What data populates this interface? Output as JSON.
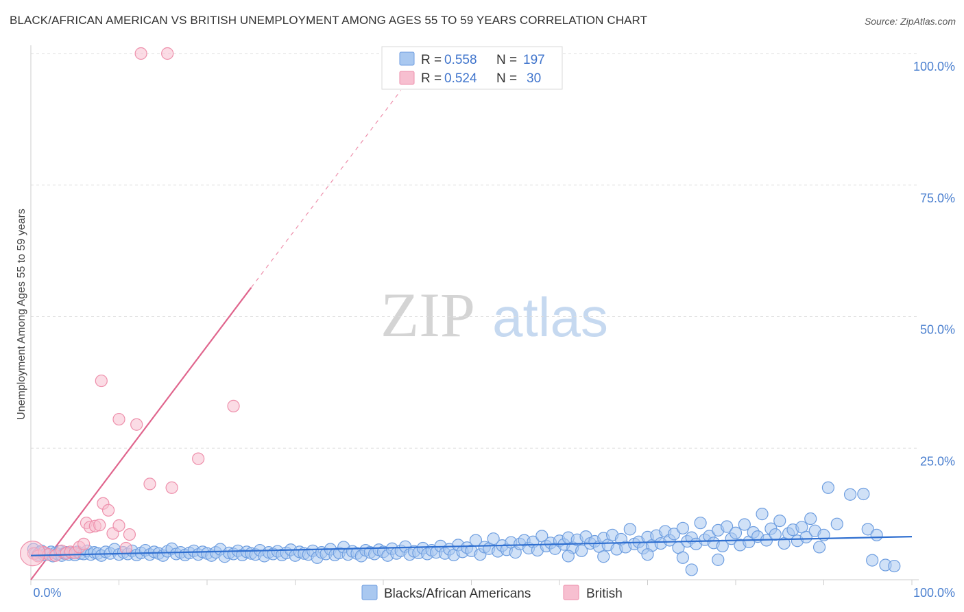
{
  "title": "BLACK/AFRICAN AMERICAN VS BRITISH UNEMPLOYMENT AMONG AGES 55 TO 59 YEARS CORRELATION CHART",
  "source": "Source: ZipAtlas.com",
  "watermark": {
    "zip": "ZIP",
    "atlas": "atlas"
  },
  "colors": {
    "blue_fill": "#a9c8f0",
    "blue_stroke": "#6e9ee0",
    "blue_line": "#2f6fd0",
    "pink_fill": "#f7bfd0",
    "pink_stroke": "#ee8fab",
    "pink_line": "#e0658d",
    "axis_text": "#4a7fcf",
    "grid": "#dddddd"
  },
  "legend": {
    "rows": [
      {
        "r_label": "R =",
        "r_value": "0.558",
        "n_label": "N =",
        "n_value": "197"
      },
      {
        "r_label": "R =",
        "r_value": "0.524",
        "n_label": "N =",
        "n_value": "30"
      }
    ]
  },
  "chart_data": {
    "type": "scatter",
    "xlabel": "",
    "ylabel": "Unemployment Among Ages 55 to 59 years",
    "xlim": [
      0,
      100
    ],
    "ylim": [
      0,
      100
    ],
    "x_tick_labels": [
      "0.0%",
      "100.0%"
    ],
    "y_ticks": [
      25,
      50,
      75,
      100
    ],
    "y_tick_labels": [
      "25.0%",
      "50.0%",
      "75.0%",
      "100.0%"
    ],
    "grid": true,
    "series": [
      {
        "name": "Blacks/African Americans",
        "r": 0.558,
        "n": 197,
        "trend": {
          "x0": 0,
          "y0": 4.6,
          "x1": 100,
          "y1": 8.2
        },
        "points": [
          [
            0.3,
            5.8
          ],
          [
            0.5,
            5.0
          ],
          [
            0.8,
            4.8
          ],
          [
            1.0,
            5.2
          ],
          [
            1.2,
            5.5
          ],
          [
            1.5,
            4.7
          ],
          [
            1.8,
            5.0
          ],
          [
            2.0,
            4.8
          ],
          [
            2.3,
            5.3
          ],
          [
            2.5,
            4.5
          ],
          [
            2.8,
            5.1
          ],
          [
            3.0,
            4.9
          ],
          [
            3.3,
            5.4
          ],
          [
            3.5,
            4.6
          ],
          [
            3.8,
            5.0
          ],
          [
            4.0,
            5.2
          ],
          [
            4.3,
            4.8
          ],
          [
            4.6,
            5.1
          ],
          [
            5.0,
            4.7
          ],
          [
            5.3,
            5.3
          ],
          [
            5.6,
            5.0
          ],
          [
            6.0,
            4.9
          ],
          [
            6.4,
            5.5
          ],
          [
            6.8,
            4.8
          ],
          [
            7.2,
            5.2
          ],
          [
            7.6,
            5.0
          ],
          [
            8.0,
            4.6
          ],
          [
            8.5,
            5.3
          ],
          [
            9.0,
            5.0
          ],
          [
            9.5,
            5.8
          ],
          [
            10.0,
            4.8
          ],
          [
            10.5,
            5.2
          ],
          [
            11.0,
            4.9
          ],
          [
            11.5,
            5.5
          ],
          [
            12.0,
            4.7
          ],
          [
            12.5,
            5.1
          ],
          [
            13.0,
            5.6
          ],
          [
            13.5,
            4.8
          ],
          [
            14.0,
            5.3
          ],
          [
            14.5,
            5.0
          ],
          [
            15.0,
            4.6
          ],
          [
            15.5,
            5.4
          ],
          [
            16.0,
            5.9
          ],
          [
            16.5,
            4.9
          ],
          [
            17.0,
            5.2
          ],
          [
            17.5,
            4.7
          ],
          [
            18.0,
            5.1
          ],
          [
            18.5,
            5.5
          ],
          [
            19.0,
            4.8
          ],
          [
            19.5,
            5.3
          ],
          [
            20.0,
            5.0
          ],
          [
            20.5,
            4.6
          ],
          [
            21.0,
            5.2
          ],
          [
            21.5,
            5.8
          ],
          [
            22.0,
            4.4
          ],
          [
            22.5,
            5.1
          ],
          [
            23.0,
            4.9
          ],
          [
            23.5,
            5.5
          ],
          [
            24.0,
            4.7
          ],
          [
            24.5,
            5.3
          ],
          [
            25.0,
            5.0
          ],
          [
            25.5,
            4.8
          ],
          [
            26.0,
            5.6
          ],
          [
            26.5,
            4.5
          ],
          [
            27.0,
            5.2
          ],
          [
            27.5,
            4.9
          ],
          [
            28.0,
            5.4
          ],
          [
            28.5,
            4.7
          ],
          [
            29.0,
            5.1
          ],
          [
            29.5,
            5.7
          ],
          [
            30.0,
            4.6
          ],
          [
            30.5,
            5.3
          ],
          [
            31.0,
            5.0
          ],
          [
            31.5,
            4.8
          ],
          [
            32.0,
            5.5
          ],
          [
            32.5,
            4.2
          ],
          [
            33.0,
            5.2
          ],
          [
            33.5,
            4.9
          ],
          [
            34.0,
            5.8
          ],
          [
            34.5,
            4.7
          ],
          [
            35.0,
            5.1
          ],
          [
            35.5,
            6.2
          ],
          [
            36.0,
            4.8
          ],
          [
            36.5,
            5.4
          ],
          [
            37.0,
            5.0
          ],
          [
            37.5,
            4.5
          ],
          [
            38.0,
            5.6
          ],
          [
            38.5,
            5.2
          ],
          [
            39.0,
            4.9
          ],
          [
            39.5,
            5.7
          ],
          [
            40.0,
            5.3
          ],
          [
            40.5,
            4.6
          ],
          [
            41.0,
            5.9
          ],
          [
            41.5,
            5.0
          ],
          [
            42.0,
            5.5
          ],
          [
            42.5,
            6.3
          ],
          [
            43.0,
            4.8
          ],
          [
            43.5,
            5.4
          ],
          [
            44.0,
            5.1
          ],
          [
            44.5,
            6.0
          ],
          [
            45.0,
            4.9
          ],
          [
            45.5,
            5.6
          ],
          [
            46.0,
            5.2
          ],
          [
            46.5,
            6.4
          ],
          [
            47.0,
            5.0
          ],
          [
            47.5,
            5.8
          ],
          [
            48.0,
            4.7
          ],
          [
            48.5,
            6.6
          ],
          [
            49.0,
            5.3
          ],
          [
            49.5,
            6.1
          ],
          [
            50.0,
            5.5
          ],
          [
            50.5,
            7.5
          ],
          [
            51.0,
            4.8
          ],
          [
            51.5,
            6.2
          ],
          [
            52.0,
            5.9
          ],
          [
            52.5,
            7.8
          ],
          [
            53.0,
            5.4
          ],
          [
            53.5,
            6.5
          ],
          [
            54.0,
            5.7
          ],
          [
            54.5,
            7.1
          ],
          [
            55.0,
            5.2
          ],
          [
            55.5,
            6.8
          ],
          [
            56.0,
            7.5
          ],
          [
            56.5,
            6.0
          ],
          [
            57.0,
            7.2
          ],
          [
            57.5,
            5.6
          ],
          [
            58.0,
            8.3
          ],
          [
            58.5,
            6.4
          ],
          [
            59.0,
            7.0
          ],
          [
            59.5,
            5.9
          ],
          [
            60.0,
            7.4
          ],
          [
            60.5,
            6.7
          ],
          [
            61.0,
            8.0
          ],
          [
            61.5,
            6.1
          ],
          [
            62.0,
            7.6
          ],
          [
            62.5,
            5.5
          ],
          [
            63.0,
            8.2
          ],
          [
            63.5,
            6.9
          ],
          [
            64.0,
            7.3
          ],
          [
            64.5,
            6.3
          ],
          [
            65.0,
            7.9
          ],
          [
            65.5,
            6.6
          ],
          [
            66.0,
            8.5
          ],
          [
            66.5,
            5.8
          ],
          [
            67.0,
            7.7
          ],
          [
            67.5,
            6.2
          ],
          [
            68.0,
            9.6
          ],
          [
            68.5,
            6.8
          ],
          [
            69.0,
            7.2
          ],
          [
            69.5,
            6.0
          ],
          [
            70.0,
            8.1
          ],
          [
            70.5,
            6.5
          ],
          [
            71.0,
            8.4
          ],
          [
            71.5,
            6.9
          ],
          [
            72.0,
            9.2
          ],
          [
            72.5,
            7.5
          ],
          [
            73.0,
            8.7
          ],
          [
            73.5,
            6.1
          ],
          [
            74.0,
            9.8
          ],
          [
            74.5,
            7.3
          ],
          [
            75.0,
            8.0
          ],
          [
            75.5,
            6.8
          ],
          [
            76.0,
            10.8
          ],
          [
            76.5,
            7.6
          ],
          [
            77.0,
            8.3
          ],
          [
            77.5,
            7.0
          ],
          [
            78.0,
            9.4
          ],
          [
            78.5,
            6.4
          ],
          [
            79.0,
            10.1
          ],
          [
            79.5,
            7.8
          ],
          [
            80.0,
            8.9
          ],
          [
            80.5,
            6.6
          ],
          [
            81.0,
            10.5
          ],
          [
            81.5,
            7.2
          ],
          [
            82.0,
            9.0
          ],
          [
            82.5,
            8.2
          ],
          [
            83.0,
            12.5
          ],
          [
            83.5,
            7.5
          ],
          [
            84.0,
            9.7
          ],
          [
            84.5,
            8.6
          ],
          [
            85.0,
            11.2
          ],
          [
            85.5,
            6.9
          ],
          [
            86.0,
            8.8
          ],
          [
            86.5,
            9.5
          ],
          [
            87.0,
            7.4
          ],
          [
            87.5,
            10.0
          ],
          [
            88.0,
            8.1
          ],
          [
            88.5,
            11.6
          ],
          [
            89.0,
            9.3
          ],
          [
            89.5,
            6.2
          ],
          [
            90.0,
            8.5
          ],
          [
            90.5,
            17.5
          ]
        ],
        "outliers": [
          [
            65.0,
            4.4
          ],
          [
            70.0,
            4.8
          ],
          [
            74.0,
            4.2
          ],
          [
            61.0,
            4.5
          ],
          [
            91.5,
            10.6
          ],
          [
            93.0,
            16.2
          ],
          [
            94.5,
            16.3
          ],
          [
            95.5,
            3.7
          ],
          [
            97.0,
            2.8
          ],
          [
            98.0,
            2.6
          ],
          [
            75.0,
            1.9
          ],
          [
            78.0,
            3.8
          ],
          [
            95.0,
            9.6
          ],
          [
            96.0,
            8.5
          ]
        ]
      },
      {
        "name": "British",
        "r": 0.524,
        "n": 30,
        "trend": {
          "x0": 0,
          "y0": 0,
          "x1": 25,
          "y1": 55.5
        },
        "trend_dashed": {
          "x0": 25,
          "y0": 55.5,
          "x1": 42,
          "y1": 93
        },
        "points": [
          [
            0.3,
            5.0
          ],
          [
            0.8,
            4.5
          ],
          [
            1.5,
            5.2
          ],
          [
            2.0,
            4.8
          ],
          [
            2.8,
            4.6
          ],
          [
            3.5,
            5.5
          ],
          [
            4.0,
            5.0
          ],
          [
            4.5,
            5.3
          ],
          [
            5.0,
            5.1
          ],
          [
            5.5,
            6.2
          ],
          [
            6.0,
            6.8
          ],
          [
            6.3,
            10.8
          ],
          [
            6.7,
            10.0
          ],
          [
            7.3,
            10.2
          ],
          [
            7.8,
            10.4
          ],
          [
            8.2,
            14.5
          ],
          [
            8.8,
            13.2
          ],
          [
            9.3,
            8.8
          ],
          [
            10.0,
            10.3
          ],
          [
            10.8,
            6.0
          ],
          [
            11.2,
            8.6
          ],
          [
            8.0,
            37.8
          ],
          [
            10.0,
            30.5
          ],
          [
            12.0,
            29.5
          ],
          [
            13.5,
            18.2
          ],
          [
            16.0,
            17.5
          ],
          [
            19.0,
            23.0
          ],
          [
            23.0,
            33.0
          ],
          [
            12.5,
            100
          ],
          [
            15.5,
            100
          ]
        ]
      }
    ]
  },
  "bottom_legend": {
    "items": [
      {
        "label": "Blacks/African Americans"
      },
      {
        "label": "British"
      }
    ]
  }
}
